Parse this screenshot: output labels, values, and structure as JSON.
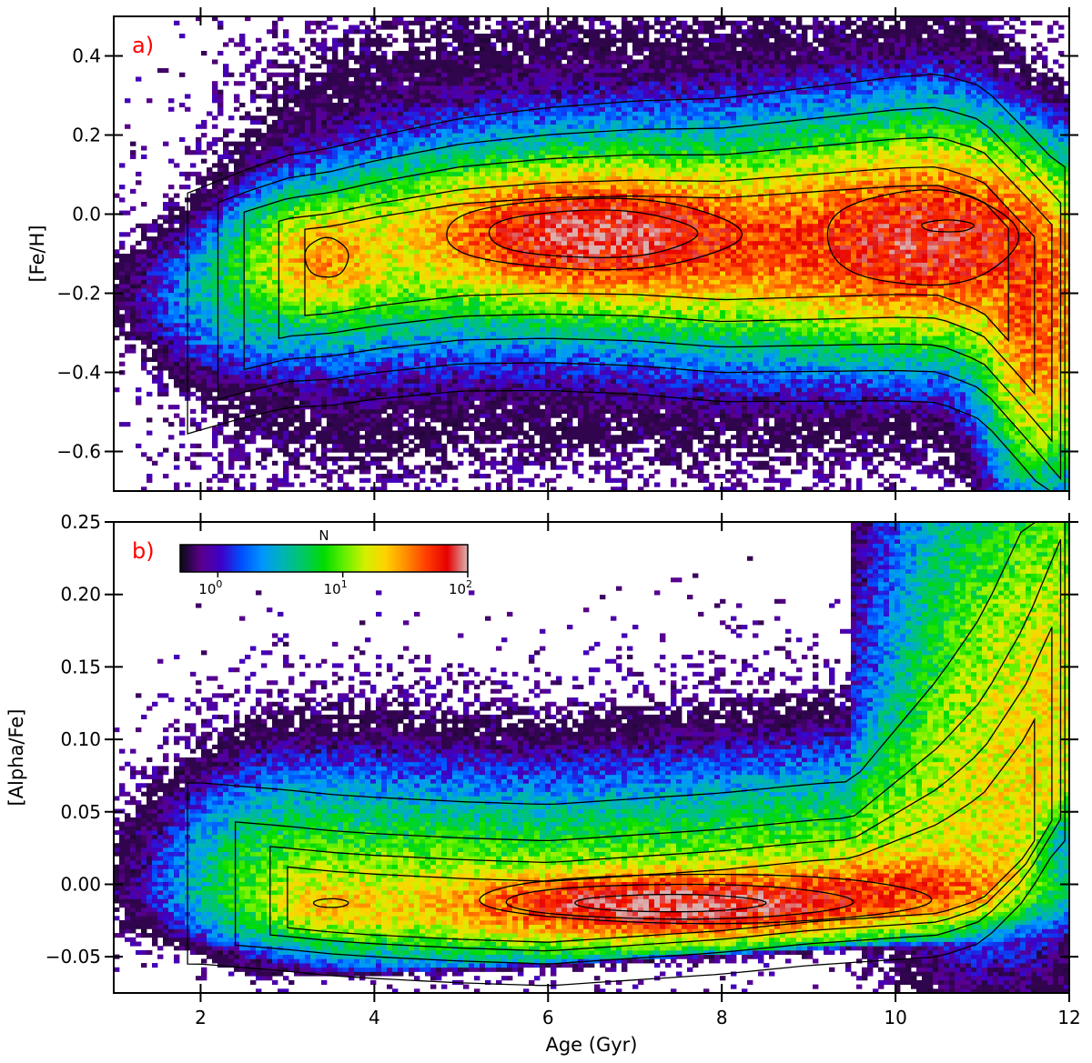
{
  "chart_data": [
    {
      "type": "heatmap",
      "panel_label": "a)",
      "xlabel": "",
      "ylabel": "[Fe/H]",
      "xlim": [
        1,
        12
      ],
      "ylim": [
        -0.7,
        0.5
      ],
      "xticks": [
        2,
        4,
        6,
        8,
        10,
        12
      ],
      "yticks": [
        0.4,
        0.2,
        0.0,
        -0.2,
        -0.4,
        -0.6
      ],
      "ytick_labels": [
        "0.4",
        "0.2",
        "0.0",
        "−0.2",
        "−0.4",
        "−0.6"
      ],
      "density_ridge": {
        "x": [
          1.8,
          2.5,
          3.0,
          3.5,
          4.0,
          5.0,
          6.0,
          7.0,
          8.0,
          9.0,
          10.0,
          10.5,
          11.0,
          11.5,
          11.9
        ],
        "y": [
          -0.2,
          -0.15,
          -0.12,
          -0.11,
          -0.09,
          -0.06,
          -0.05,
          -0.05,
          -0.06,
          -0.05,
          -0.04,
          -0.04,
          -0.08,
          -0.2,
          -0.3
        ]
      },
      "peaks": [
        {
          "x": 6.5,
          "y": -0.05
        },
        {
          "x": 10.6,
          "y": -0.03
        },
        {
          "x": 3.4,
          "y": -0.11
        }
      ]
    },
    {
      "type": "heatmap",
      "panel_label": "b)",
      "xlabel": "Age (Gyr)",
      "ylabel": "[Alpha/Fe]",
      "xlim": [
        1,
        12
      ],
      "ylim": [
        -0.075,
        0.25
      ],
      "xticks": [
        2,
        4,
        6,
        8,
        10,
        12
      ],
      "xtick_labels": [
        "2",
        "4",
        "6",
        "8",
        "10",
        "12"
      ],
      "yticks": [
        0.25,
        0.2,
        0.15,
        0.1,
        0.05,
        0.0,
        -0.05
      ],
      "ytick_labels": [
        "0.25",
        "0.20",
        "0.15",
        "0.10",
        "0.05",
        "0.00",
        "−0.05"
      ],
      "density_ridge": {
        "x": [
          2.0,
          3.0,
          3.5,
          4.0,
          5.0,
          6.0,
          7.0,
          8.0,
          9.0,
          10.0,
          10.5,
          11.0,
          11.5,
          11.9
        ],
        "y": [
          -0.005,
          -0.01,
          -0.013,
          -0.015,
          -0.018,
          -0.02,
          -0.016,
          -0.012,
          -0.006,
          -0.002,
          0.0,
          0.01,
          0.04,
          0.08
        ]
      },
      "peaks": [
        {
          "x": 7.5,
          "y": -0.013
        },
        {
          "x": 3.5,
          "y": -0.013
        }
      ]
    }
  ],
  "colorbar": {
    "title": "N",
    "scale": "log",
    "range": [
      0.5,
      100
    ],
    "tick_values": [
      1,
      10,
      100
    ],
    "tick_mantissa": "10",
    "tick_exponents": [
      "0",
      "1",
      "2"
    ],
    "colors": [
      "#0a0a14",
      "#5a008c",
      "#3c00c8",
      "#0050ff",
      "#0096ff",
      "#00b4b4",
      "#00c864",
      "#00dc00",
      "#64f000",
      "#d2f000",
      "#ffd200",
      "#ff8c00",
      "#ff3c00",
      "#e60000",
      "#dcb4b4"
    ]
  }
}
